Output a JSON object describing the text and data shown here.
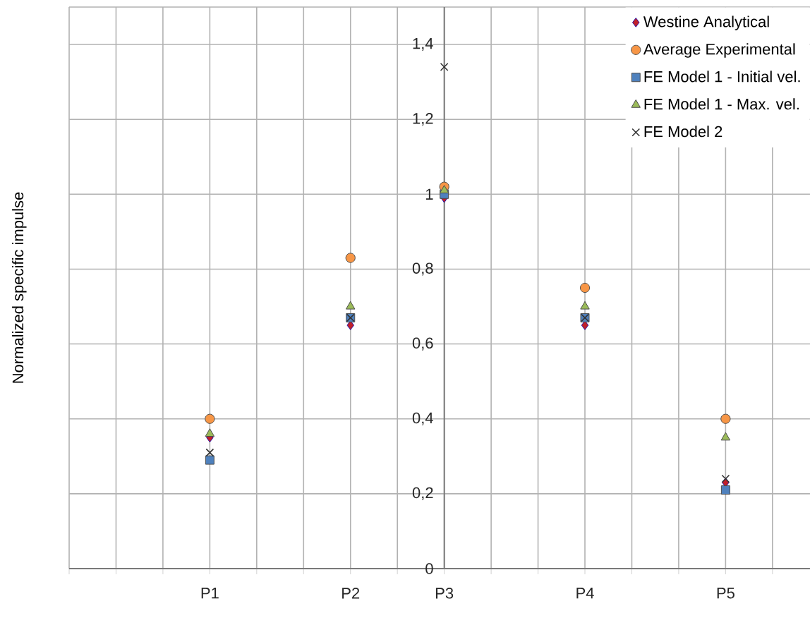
{
  "chart_data": {
    "type": "scatter",
    "ylabel": "Normalized specific impulse",
    "categories": [
      null,
      null,
      null,
      "P1",
      null,
      null,
      "P2",
      null,
      "P3",
      null,
      null,
      "P4",
      null,
      null,
      "P5",
      null
    ],
    "ylim": [
      0,
      1.5
    ],
    "yticks": [
      0,
      {
        "value": 0.2,
        "label": "0,2"
      },
      {
        "value": 0.4,
        "label": "0,4"
      },
      {
        "value": 0.6,
        "label": "0,6"
      },
      {
        "value": 0.8,
        "label": "0,8"
      },
      1,
      {
        "value": 1.2,
        "label": "1,2"
      },
      {
        "value": 1.4,
        "label": "1,4"
      },
      {
        "value": 1.5,
        "label": null
      }
    ],
    "grid": true,
    "legend": "top right",
    "series": [
      {
        "name": "Westine Analytical",
        "color": "#c0202a",
        "marker": "diamond",
        "values": [
          null,
          null,
          null,
          0.35,
          null,
          null,
          0.65,
          null,
          0.99,
          null,
          null,
          0.65,
          null,
          null,
          0.23,
          null
        ]
      },
      {
        "name": "Average Experimental",
        "color": "#f79646",
        "marker": "circle",
        "values": [
          null,
          null,
          null,
          0.4,
          null,
          null,
          0.83,
          null,
          1.02,
          null,
          null,
          0.75,
          null,
          null,
          0.4,
          null
        ]
      },
      {
        "name": "FE Model 1 - Initial vel.",
        "color": "#4f81bd",
        "marker": "square",
        "values": [
          null,
          null,
          null,
          0.29,
          null,
          null,
          0.67,
          null,
          1.0,
          null,
          null,
          0.67,
          null,
          null,
          0.21,
          null
        ]
      },
      {
        "name": "FE Model 1 - Max. vel.",
        "color": "#9bbb59",
        "marker": "triangle",
        "values": [
          null,
          null,
          null,
          0.36,
          null,
          null,
          0.7,
          null,
          1.01,
          null,
          null,
          0.7,
          null,
          null,
          0.35,
          null
        ]
      },
      {
        "name": "FE Model 2",
        "color": "#333333",
        "marker": "cross",
        "values": [
          null,
          null,
          null,
          0.31,
          null,
          null,
          0.67,
          null,
          1.34,
          null,
          null,
          0.67,
          null,
          null,
          0.24,
          null
        ]
      }
    ]
  }
}
